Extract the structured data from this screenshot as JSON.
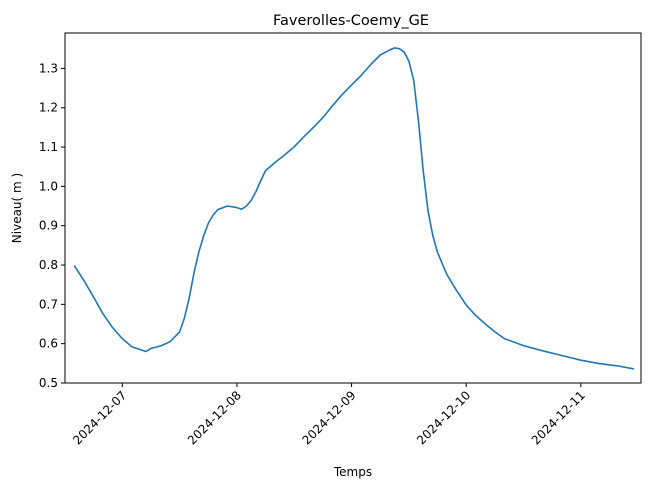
{
  "chart_data": {
    "type": "line",
    "title": "Faverolles-Coemy_GE",
    "xlabel": "Temps",
    "ylabel": "Niveau( m )",
    "x_tick_labels": [
      "2024-12-07",
      "2024-12-08",
      "2024-12-09",
      "2024-12-10",
      "2024-12-11"
    ],
    "y_tick_labels": [
      "0.5",
      "0.6",
      "0.7",
      "0.8",
      "0.9",
      "1.0",
      "1.1",
      "1.2",
      "1.3"
    ],
    "xlim": [
      "2024-12-06 12:00",
      "2024-12-11 12:36"
    ],
    "ylim": [
      0.5,
      1.39
    ],
    "grid": false,
    "line_color": "#1f77b4",
    "series": [
      {
        "x": [
          "2024-12-06 14:00",
          "2024-12-06 16:00",
          "2024-12-06 18:00",
          "2024-12-06 20:00",
          "2024-12-06 22:00",
          "2024-12-07 00:00",
          "2024-12-07 02:00",
          "2024-12-07 04:00",
          "2024-12-07 05:00",
          "2024-12-07 06:00",
          "2024-12-07 08:00",
          "2024-12-07 10:00",
          "2024-12-07 12:00",
          "2024-12-07 13:00",
          "2024-12-07 14:00",
          "2024-12-07 15:00",
          "2024-12-07 16:00",
          "2024-12-07 17:00",
          "2024-12-07 18:00",
          "2024-12-07 19:00",
          "2024-12-07 20:00",
          "2024-12-07 22:00",
          "2024-12-08 00:00",
          "2024-12-08 01:00",
          "2024-12-08 02:00",
          "2024-12-08 03:00",
          "2024-12-08 04:00",
          "2024-12-08 05:00",
          "2024-12-08 06:00",
          "2024-12-08 08:00",
          "2024-12-08 10:00",
          "2024-12-08 12:00",
          "2024-12-08 14:00",
          "2024-12-08 16:00",
          "2024-12-08 18:00",
          "2024-12-08 20:00",
          "2024-12-08 22:00",
          "2024-12-09 00:00",
          "2024-12-09 02:00",
          "2024-12-09 04:00",
          "2024-12-09 06:00",
          "2024-12-09 08:00",
          "2024-12-09 09:00",
          "2024-12-09 10:00",
          "2024-12-09 11:00",
          "2024-12-09 12:00",
          "2024-12-09 13:00",
          "2024-12-09 14:00",
          "2024-12-09 15:00",
          "2024-12-09 16:00",
          "2024-12-09 17:00",
          "2024-12-09 18:00",
          "2024-12-09 20:00",
          "2024-12-09 22:00",
          "2024-12-10 00:00",
          "2024-12-10 02:00",
          "2024-12-10 04:00",
          "2024-12-10 06:00",
          "2024-12-10 08:00",
          "2024-12-10 12:00",
          "2024-12-10 16:00",
          "2024-12-10 20:00",
          "2024-12-11 00:00",
          "2024-12-11 04:00",
          "2024-12-11 08:00",
          "2024-12-11 11:00"
        ],
        "y": [
          0.797,
          0.76,
          0.718,
          0.675,
          0.64,
          0.613,
          0.592,
          0.584,
          0.58,
          0.588,
          0.594,
          0.605,
          0.63,
          0.665,
          0.716,
          0.78,
          0.832,
          0.873,
          0.906,
          0.927,
          0.941,
          0.95,
          0.946,
          0.942,
          0.95,
          0.965,
          0.987,
          1.015,
          1.04,
          1.061,
          1.08,
          1.101,
          1.126,
          1.15,
          1.175,
          1.205,
          1.233,
          1.258,
          1.282,
          1.31,
          1.334,
          1.347,
          1.352,
          1.35,
          1.342,
          1.318,
          1.27,
          1.168,
          1.04,
          0.938,
          0.875,
          0.832,
          0.775,
          0.735,
          0.698,
          0.672,
          0.65,
          0.63,
          0.613,
          0.595,
          0.582,
          0.57,
          0.558,
          0.549,
          0.543,
          0.536
        ]
      }
    ]
  }
}
